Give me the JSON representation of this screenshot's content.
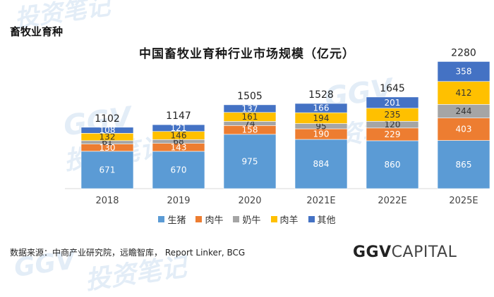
{
  "section_title": "畜牧业育种",
  "source_text": "数据来源：中商产业研究院，远瞻智库，  Report Linker, BCG",
  "logo": {
    "bold": "GGV",
    "light": "CAPITAL"
  },
  "watermark": {
    "text1": "投资笔记",
    "text2": "GGV"
  },
  "colors": {
    "pig": "#5B9BD5",
    "beef": "#ED7D31",
    "dairy": "#A5A5A5",
    "lamb": "#FFC000",
    "other": "#4472C4"
  },
  "chart_data": {
    "type": "stacked-bar",
    "title": "中国畜牧业育种行业市场规模（亿元）",
    "categories": [
      "2018",
      "2019",
      "2020",
      "2021E",
      "2022E",
      "2025E"
    ],
    "totals": [
      1102,
      1147,
      1505,
      1528,
      1645,
      2280
    ],
    "series": [
      {
        "key": "pig",
        "name": "生猪",
        "values": [
          671,
          670,
          975,
          884,
          860,
          865
        ]
      },
      {
        "key": "beef",
        "name": "肉牛",
        "values": [
          130,
          143,
          158,
          190,
          229,
          403
        ]
      },
      {
        "key": "dairy",
        "name": "奶牛",
        "values": [
          61,
          68,
          74,
          95,
          120,
          244
        ]
      },
      {
        "key": "lamb",
        "name": "肉羊",
        "values": [
          132,
          146,
          161,
          194,
          235,
          412
        ]
      },
      {
        "key": "other",
        "name": "其他",
        "values": [
          108,
          121,
          137,
          166,
          201,
          358
        ]
      }
    ],
    "ylim": [
      0,
      2300
    ],
    "legend_position": "bottom"
  }
}
